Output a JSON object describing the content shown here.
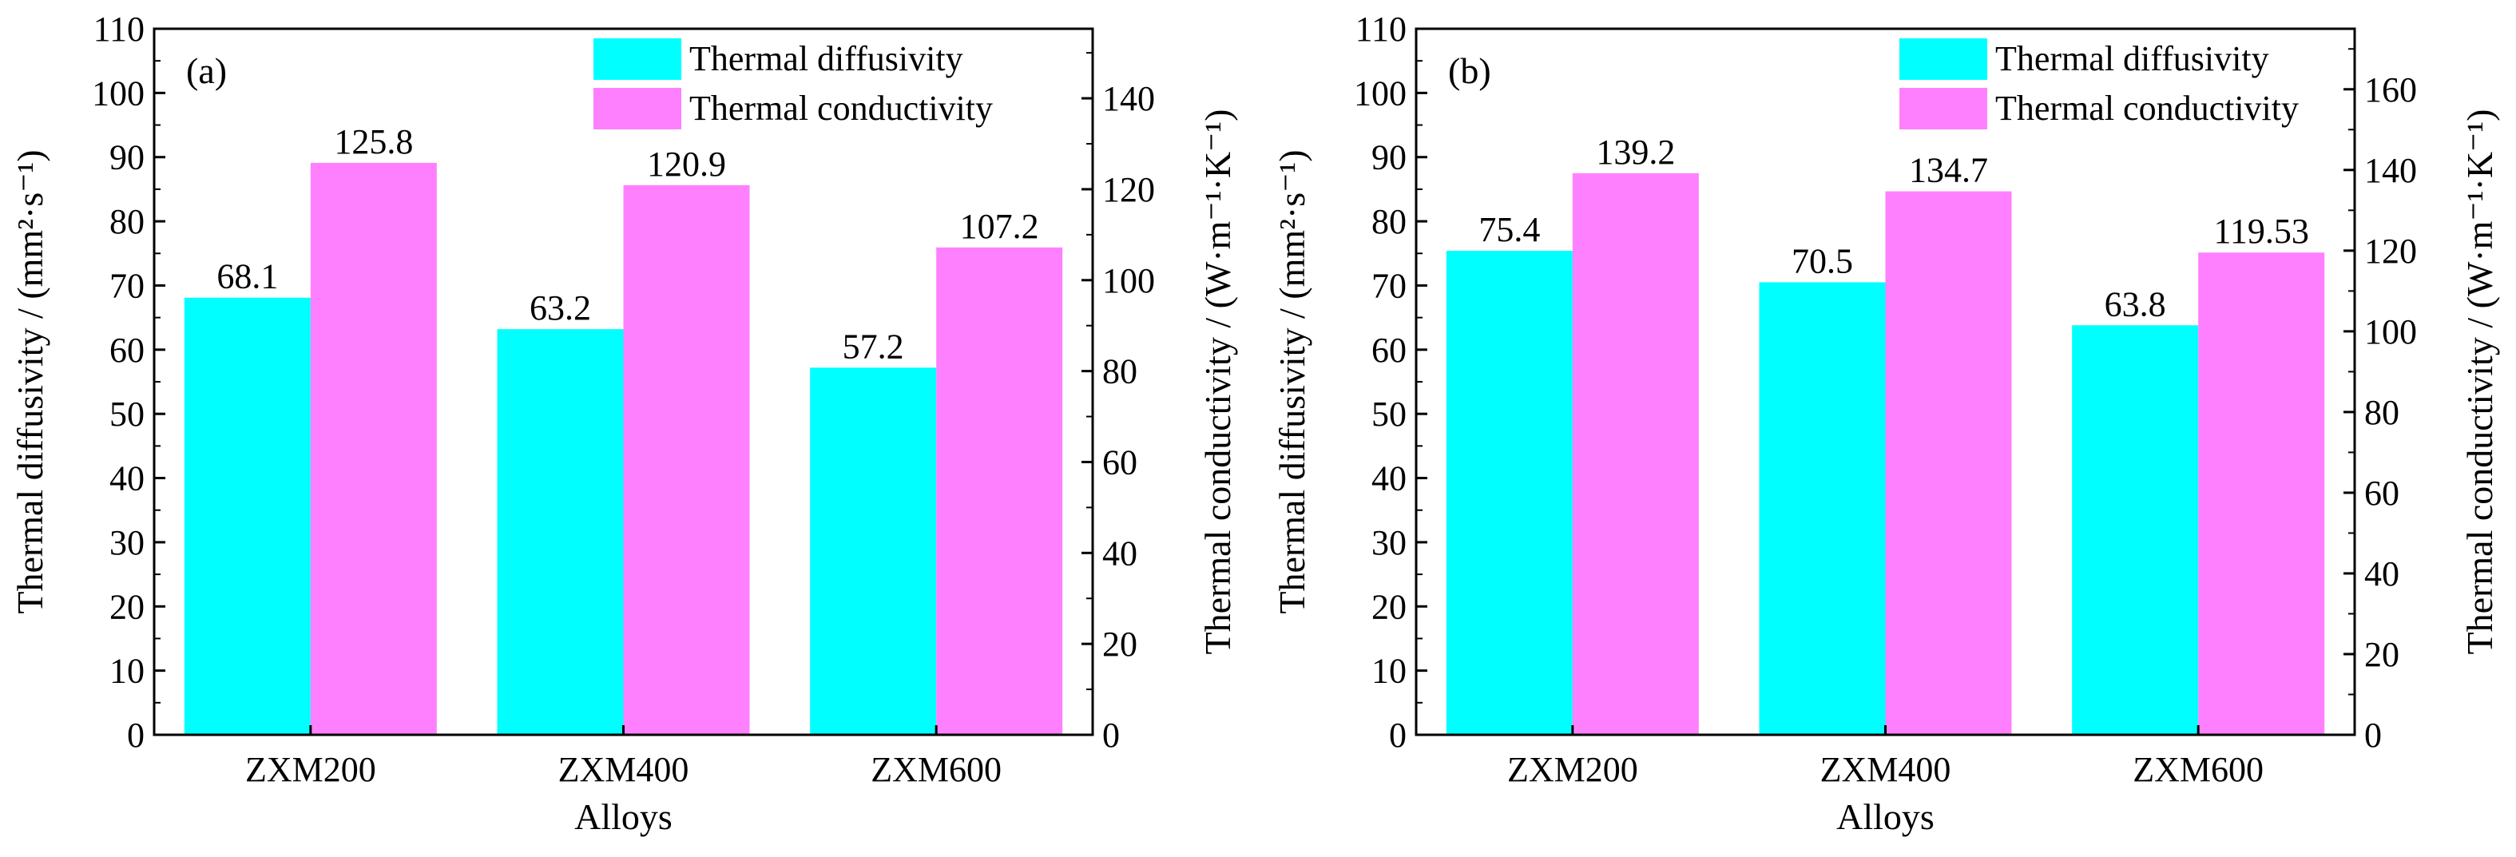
{
  "chart_data": [
    {
      "type": "bar",
      "panel_label": "(a)",
      "categories": [
        "ZXM200",
        "ZXM400",
        "ZXM600"
      ],
      "xlabel": "Alloys",
      "ylabel": "Thermal diffusivity / (mm²·s⁻¹)",
      "y2label": "Thermal conductivity / (W·m⁻¹·K⁻¹)",
      "ylim": [
        0,
        110
      ],
      "y2lim": [
        0,
        155.3
      ],
      "yticks": [
        0,
        10,
        20,
        30,
        40,
        50,
        60,
        70,
        80,
        90,
        100,
        110
      ],
      "y2ticks": [
        0,
        20,
        40,
        60,
        80,
        100,
        120,
        140
      ],
      "legend_position": "top-right",
      "grid": false,
      "series": [
        {
          "name": "Thermal diffusivity",
          "axis": "left",
          "color": "#00FFFF",
          "values": [
            68.1,
            63.2,
            57.2
          ],
          "labels": [
            "68.1",
            "63.2",
            "57.2"
          ]
        },
        {
          "name": "Thermal conductivity",
          "axis": "right",
          "color": "#FF80FF",
          "values": [
            125.8,
            120.9,
            107.2
          ],
          "labels": [
            "125.8",
            "120.9",
            "107.2"
          ]
        }
      ]
    },
    {
      "type": "bar",
      "panel_label": "(b)",
      "categories": [
        "ZXM200",
        "ZXM400",
        "ZXM600"
      ],
      "xlabel": "Alloys",
      "ylabel": "Thermal diffusivity / (mm²·s⁻¹)",
      "y2label": "Thermal conductivity / (W·m⁻¹·K⁻¹)",
      "ylim": [
        0,
        110
      ],
      "y2lim": [
        0,
        175
      ],
      "yticks": [
        0,
        10,
        20,
        30,
        40,
        50,
        60,
        70,
        80,
        90,
        100,
        110
      ],
      "y2ticks": [
        0,
        20,
        40,
        60,
        80,
        100,
        120,
        140,
        160
      ],
      "legend_position": "top-right",
      "grid": false,
      "series": [
        {
          "name": "Thermal diffusivity",
          "axis": "left",
          "color": "#00FFFF",
          "values": [
            75.4,
            70.5,
            63.8
          ],
          "labels": [
            "75.4",
            "70.5",
            "63.8"
          ]
        },
        {
          "name": "Thermal conductivity",
          "axis": "right",
          "color": "#FF80FF",
          "values": [
            139.2,
            134.7,
            119.53
          ],
          "labels": [
            "139.2",
            "134.7",
            "119.53"
          ]
        }
      ]
    }
  ]
}
